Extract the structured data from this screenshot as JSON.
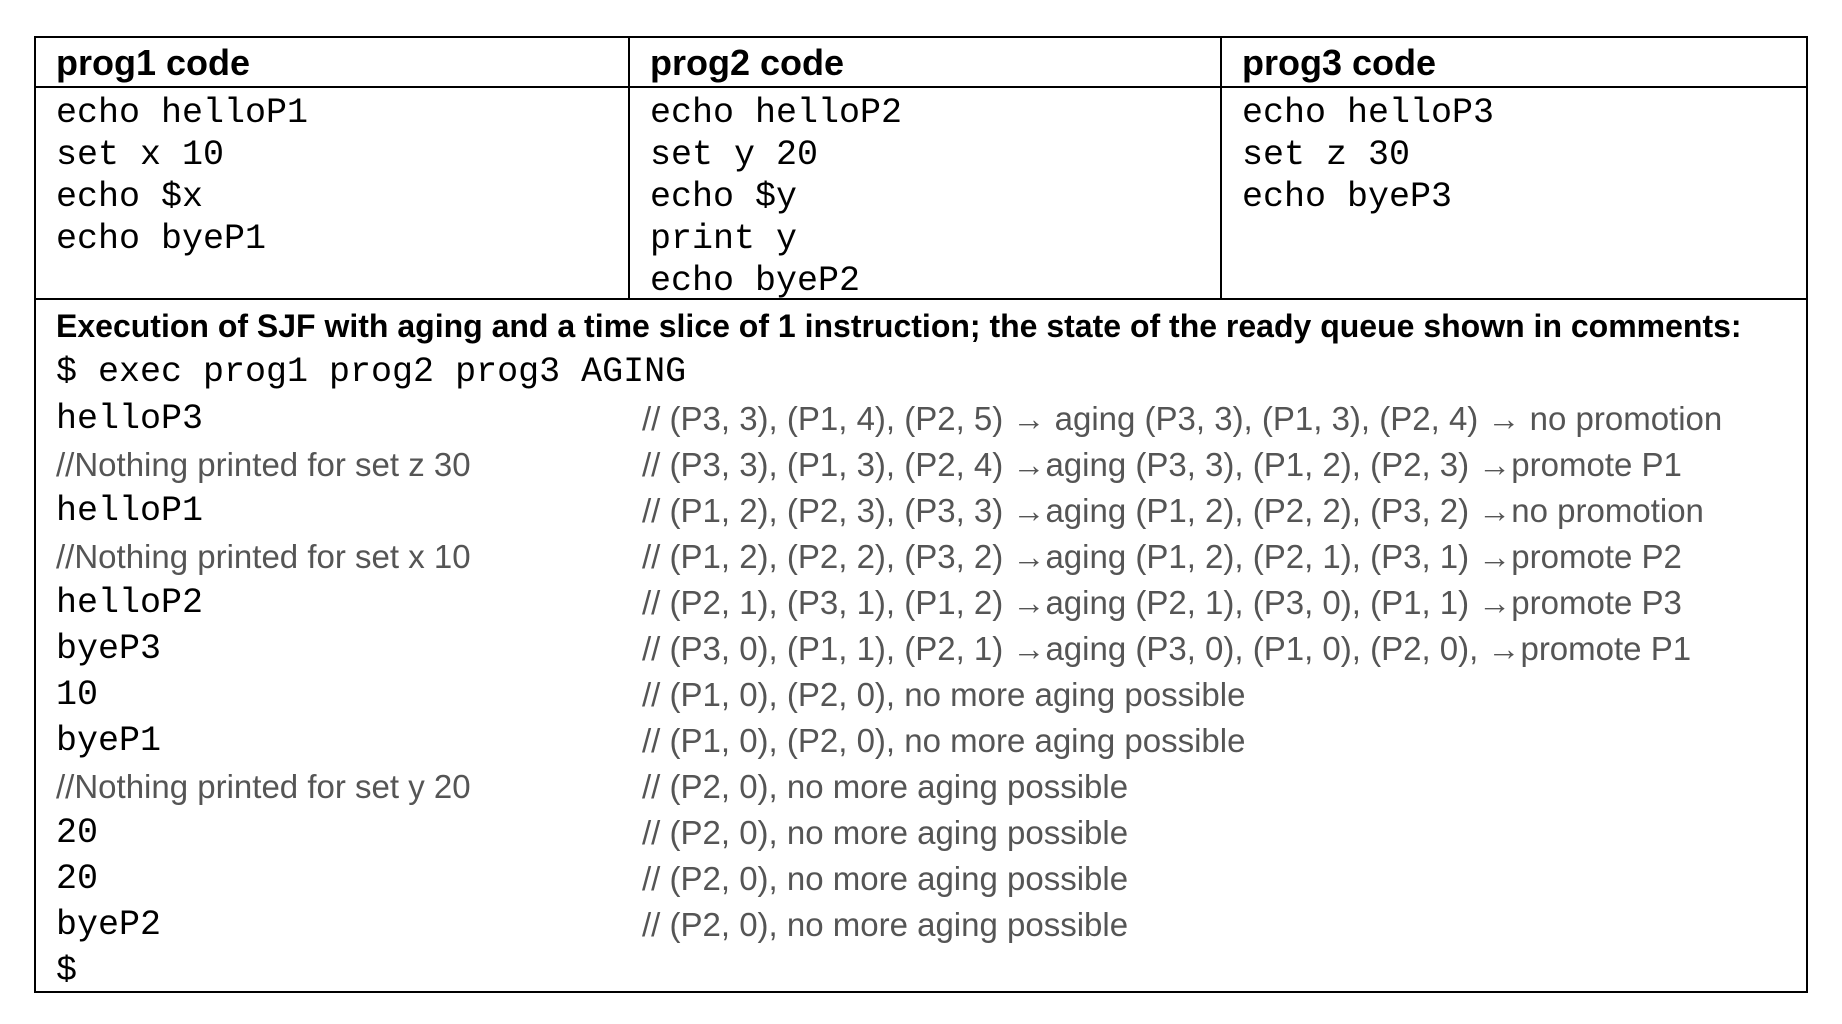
{
  "programs": [
    {
      "header": "prog1 code",
      "lines": [
        "echo helloP1",
        "set x 10",
        "echo $x",
        "echo byeP1"
      ]
    },
    {
      "header": "prog2 code",
      "lines": [
        "echo helloP2",
        "set y 20",
        "echo $y",
        "print y",
        "echo byeP2"
      ]
    },
    {
      "header": "prog3 code",
      "lines": [
        "echo helloP3",
        "set z 30",
        "echo byeP3"
      ]
    }
  ],
  "execution": {
    "heading": "Execution of SJF with aging and a time slice of 1 instruction; the state of the ready queue shown in comments:",
    "command": "$ exec prog1 prog2 prog3 AGING",
    "rows": [
      {
        "output": "helloP3",
        "note": "",
        "comment": "// (P3, 3), (P1, 4), (P2, 5) → aging (P3, 3), (P1, 3), (P2, 4) → no promotion"
      },
      {
        "output": "",
        "note": "//Nothing printed for set z 30",
        "comment": "// (P3, 3), (P1, 3), (P2, 4) →aging (P3, 3), (P1, 2), (P2, 3) →promote P1"
      },
      {
        "output": "helloP1",
        "note": "",
        "comment": "// (P1, 2), (P2, 3), (P3, 3) →aging (P1, 2), (P2, 2), (P3, 2) →no promotion"
      },
      {
        "output": "",
        "note": "//Nothing printed for set x 10",
        "comment": "// (P1, 2), (P2, 2), (P3, 2) →aging (P1, 2), (P2, 1), (P3, 1) →promote P2"
      },
      {
        "output": "helloP2",
        "note": "",
        "comment": "// (P2, 1), (P3, 1), (P1, 2) →aging (P2, 1), (P3, 0), (P1, 1) →promote P3"
      },
      {
        "output": "byeP3",
        "note": "",
        "comment": "// (P3, 0), (P1, 1), (P2, 1) →aging (P3, 0), (P1, 0), (P2, 0), →promote P1"
      },
      {
        "output": "10",
        "note": "",
        "comment": "// (P1, 0), (P2, 0), no more aging possible"
      },
      {
        "output": "byeP1",
        "note": "",
        "comment": "// (P1, 0), (P2, 0), no more aging possible"
      },
      {
        "output": "",
        "note": "//Nothing printed for set y 20",
        "comment": "// (P2, 0), no more aging possible"
      },
      {
        "output": "20",
        "note": "",
        "comment": "// (P2, 0), no more aging possible"
      },
      {
        "output": "20",
        "note": "",
        "comment": "// (P2, 0), no more aging possible"
      },
      {
        "output": "byeP2",
        "note": "",
        "comment": "// (P2, 0), no more aging possible"
      },
      {
        "output": "$",
        "note": "",
        "comment": ""
      }
    ]
  }
}
